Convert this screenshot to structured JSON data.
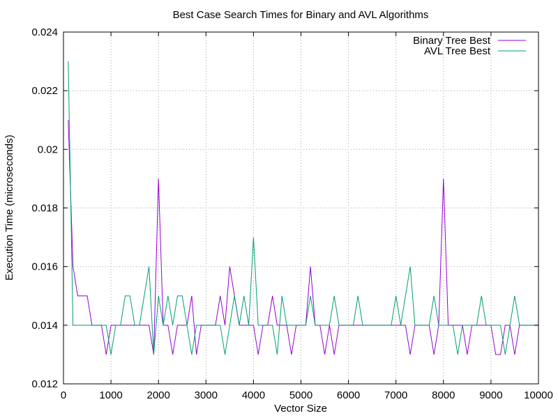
{
  "chart_data": {
    "type": "line",
    "title": "Best Case Search Times for Binary and AVL Algorithms",
    "xlabel": "Vector Size",
    "ylabel": "Execution Time (microseconds)",
    "xlim": [
      0,
      10000
    ],
    "ylim": [
      0.012,
      0.024
    ],
    "xticks": [
      0,
      1000,
      2000,
      3000,
      4000,
      5000,
      6000,
      7000,
      8000,
      9000,
      10000
    ],
    "yticks": [
      0.012,
      0.014,
      0.016,
      0.018,
      0.02,
      0.022,
      0.024
    ],
    "ytick_labels": [
      "0.012",
      "0.014",
      "0.016",
      "0.018",
      "0.02",
      "0.022",
      "0.024"
    ],
    "grid": true,
    "legend_position": "top-right",
    "series": [
      {
        "name": "Binary Tree Best",
        "color": "#9400d3",
        "points": [
          [
            100,
            0.021
          ],
          [
            200,
            0.016
          ],
          [
            300,
            0.015
          ],
          [
            400,
            0.015
          ],
          [
            500,
            0.015
          ],
          [
            600,
            0.014
          ],
          [
            700,
            0.014
          ],
          [
            800,
            0.014
          ],
          [
            900,
            0.013
          ],
          [
            1000,
            0.014
          ],
          [
            1100,
            0.014
          ],
          [
            1200,
            0.014
          ],
          [
            1300,
            0.014
          ],
          [
            1400,
            0.014
          ],
          [
            1500,
            0.014
          ],
          [
            1600,
            0.014
          ],
          [
            1700,
            0.014
          ],
          [
            1800,
            0.014
          ],
          [
            1900,
            0.013
          ],
          [
            2000,
            0.019
          ],
          [
            2100,
            0.014
          ],
          [
            2200,
            0.014
          ],
          [
            2300,
            0.013
          ],
          [
            2400,
            0.014
          ],
          [
            2500,
            0.014
          ],
          [
            2600,
            0.014
          ],
          [
            2700,
            0.015
          ],
          [
            2800,
            0.013
          ],
          [
            2900,
            0.014
          ],
          [
            3000,
            0.014
          ],
          [
            3100,
            0.014
          ],
          [
            3200,
            0.014
          ],
          [
            3300,
            0.015
          ],
          [
            3400,
            0.014
          ],
          [
            3500,
            0.016
          ],
          [
            3600,
            0.015
          ],
          [
            3700,
            0.014
          ],
          [
            3800,
            0.014
          ],
          [
            3900,
            0.014
          ],
          [
            4000,
            0.014
          ],
          [
            4100,
            0.013
          ],
          [
            4200,
            0.014
          ],
          [
            4300,
            0.014
          ],
          [
            4400,
            0.015
          ],
          [
            4500,
            0.014
          ],
          [
            4600,
            0.014
          ],
          [
            4700,
            0.014
          ],
          [
            4800,
            0.013
          ],
          [
            4900,
            0.014
          ],
          [
            5000,
            0.014
          ],
          [
            5100,
            0.014
          ],
          [
            5200,
            0.016
          ],
          [
            5300,
            0.014
          ],
          [
            5400,
            0.014
          ],
          [
            5500,
            0.013
          ],
          [
            5600,
            0.014
          ],
          [
            5700,
            0.013
          ],
          [
            5800,
            0.014
          ],
          [
            5900,
            0.014
          ],
          [
            6000,
            0.014
          ],
          [
            6100,
            0.014
          ],
          [
            6200,
            0.014
          ],
          [
            6300,
            0.014
          ],
          [
            6400,
            0.014
          ],
          [
            6500,
            0.014
          ],
          [
            6600,
            0.014
          ],
          [
            6700,
            0.014
          ],
          [
            6800,
            0.014
          ],
          [
            6900,
            0.014
          ],
          [
            7000,
            0.014
          ],
          [
            7100,
            0.014
          ],
          [
            7200,
            0.014
          ],
          [
            7300,
            0.013
          ],
          [
            7400,
            0.014
          ],
          [
            7500,
            0.014
          ],
          [
            7600,
            0.014
          ],
          [
            7700,
            0.014
          ],
          [
            7800,
            0.013
          ],
          [
            7900,
            0.014
          ],
          [
            8000,
            0.019
          ],
          [
            8100,
            0.014
          ],
          [
            8200,
            0.014
          ],
          [
            8300,
            0.014
          ],
          [
            8400,
            0.014
          ],
          [
            8500,
            0.013
          ],
          [
            8600,
            0.014
          ],
          [
            8700,
            0.014
          ],
          [
            8800,
            0.014
          ],
          [
            8900,
            0.014
          ],
          [
            9000,
            0.014
          ],
          [
            9100,
            0.013
          ],
          [
            9200,
            0.013
          ],
          [
            9300,
            0.014
          ],
          [
            9400,
            0.014
          ],
          [
            9500,
            0.013
          ],
          [
            9600,
            0.014
          ],
          [
            9700,
            0.014
          ],
          [
            9800,
            0.014
          ],
          [
            9900,
            0.014
          ],
          [
            10000,
            0.014
          ]
        ]
      },
      {
        "name": "AVL Tree Best",
        "color": "#009e73",
        "points": [
          [
            100,
            0.023
          ],
          [
            200,
            0.014
          ],
          [
            300,
            0.014
          ],
          [
            400,
            0.014
          ],
          [
            500,
            0.014
          ],
          [
            600,
            0.014
          ],
          [
            700,
            0.014
          ],
          [
            800,
            0.014
          ],
          [
            900,
            0.014
          ],
          [
            1000,
            0.013
          ],
          [
            1100,
            0.014
          ],
          [
            1200,
            0.014
          ],
          [
            1300,
            0.015
          ],
          [
            1400,
            0.015
          ],
          [
            1500,
            0.014
          ],
          [
            1600,
            0.014
          ],
          [
            1700,
            0.015
          ],
          [
            1800,
            0.016
          ],
          [
            1900,
            0.013
          ],
          [
            2000,
            0.015
          ],
          [
            2100,
            0.014
          ],
          [
            2200,
            0.015
          ],
          [
            2300,
            0.014
          ],
          [
            2400,
            0.015
          ],
          [
            2500,
            0.015
          ],
          [
            2600,
            0.014
          ],
          [
            2700,
            0.013
          ],
          [
            2800,
            0.014
          ],
          [
            2900,
            0.014
          ],
          [
            3000,
            0.014
          ],
          [
            3100,
            0.014
          ],
          [
            3200,
            0.014
          ],
          [
            3300,
            0.014
          ],
          [
            3400,
            0.013
          ],
          [
            3500,
            0.014
          ],
          [
            3600,
            0.015
          ],
          [
            3700,
            0.014
          ],
          [
            3800,
            0.015
          ],
          [
            3900,
            0.014
          ],
          [
            4000,
            0.017
          ],
          [
            4100,
            0.014
          ],
          [
            4200,
            0.014
          ],
          [
            4300,
            0.014
          ],
          [
            4400,
            0.014
          ],
          [
            4500,
            0.013
          ],
          [
            4600,
            0.015
          ],
          [
            4700,
            0.014
          ],
          [
            4800,
            0.014
          ],
          [
            4900,
            0.014
          ],
          [
            5000,
            0.014
          ],
          [
            5100,
            0.014
          ],
          [
            5200,
            0.015
          ],
          [
            5300,
            0.014
          ],
          [
            5400,
            0.014
          ],
          [
            5500,
            0.014
          ],
          [
            5600,
            0.014
          ],
          [
            5700,
            0.015
          ],
          [
            5800,
            0.014
          ],
          [
            5900,
            0.014
          ],
          [
            6000,
            0.014
          ],
          [
            6100,
            0.014
          ],
          [
            6200,
            0.015
          ],
          [
            6300,
            0.014
          ],
          [
            6400,
            0.014
          ],
          [
            6500,
            0.014
          ],
          [
            6600,
            0.014
          ],
          [
            6700,
            0.014
          ],
          [
            6800,
            0.014
          ],
          [
            6900,
            0.014
          ],
          [
            7000,
            0.015
          ],
          [
            7100,
            0.014
          ],
          [
            7200,
            0.015
          ],
          [
            7300,
            0.016
          ],
          [
            7400,
            0.014
          ],
          [
            7500,
            0.014
          ],
          [
            7600,
            0.014
          ],
          [
            7700,
            0.014
          ],
          [
            7800,
            0.015
          ],
          [
            7900,
            0.014
          ],
          [
            8000,
            0.014
          ],
          [
            8100,
            0.014
          ],
          [
            8200,
            0.014
          ],
          [
            8300,
            0.013
          ],
          [
            8400,
            0.014
          ],
          [
            8500,
            0.014
          ],
          [
            8600,
            0.014
          ],
          [
            8700,
            0.014
          ],
          [
            8800,
            0.015
          ],
          [
            8900,
            0.014
          ],
          [
            9000,
            0.014
          ],
          [
            9100,
            0.014
          ],
          [
            9200,
            0.014
          ],
          [
            9300,
            0.013
          ],
          [
            9400,
            0.014
          ],
          [
            9500,
            0.015
          ],
          [
            9600,
            0.014
          ],
          [
            9700,
            0.014
          ],
          [
            9800,
            0.014
          ],
          [
            9900,
            0.014
          ],
          [
            10000,
            0.014
          ]
        ]
      }
    ]
  }
}
